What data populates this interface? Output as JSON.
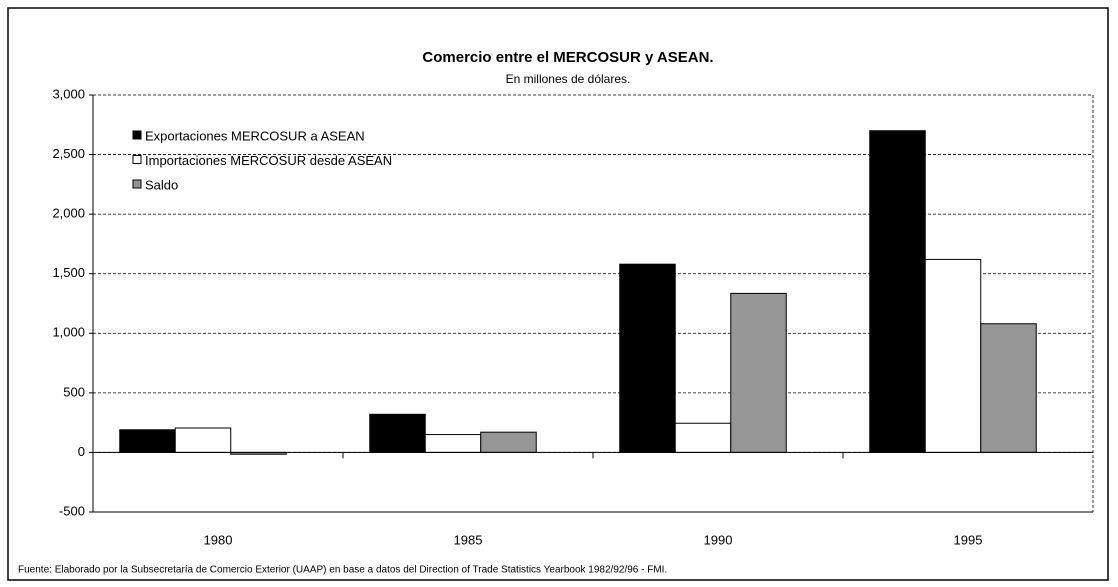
{
  "chart_data": {
    "type": "bar",
    "title": "Comercio entre el MERCOSUR y ASEAN.",
    "subtitle": "En millones de dólares.",
    "source": "Fuente: Elaborado por la Subsecretaría de Comercio Exterior (UAAP) en base a datos del Direction of Trade Statistics Yearbook 1982/92/96 - FMI.",
    "categories": [
      "1980",
      "1985",
      "1990",
      "1995"
    ],
    "series": [
      {
        "name": "Exportaciones MERCOSUR a ASEAN",
        "color": "#000000",
        "values": [
          190,
          320,
          1580,
          2700
        ]
      },
      {
        "name": "Importaciones MERCOSUR desde ASEAN",
        "color": "#ffffff",
        "values": [
          205,
          150,
          245,
          1620
        ]
      },
      {
        "name": "Saldo",
        "color": "#969696",
        "values": [
          -15,
          170,
          1335,
          1080
        ]
      }
    ],
    "ylim": [
      -500,
      3000
    ],
    "yticks": [
      -500,
      0,
      500,
      {
        "value": 1000,
        "label": "1,000"
      },
      {
        "value": 1500,
        "label": "1,500"
      },
      {
        "value": 2000,
        "label": "2,000"
      },
      {
        "value": 2500,
        "label": "2,500"
      },
      {
        "value": 3000,
        "label": "3,000"
      }
    ],
    "grid": true,
    "legend": "top-left"
  }
}
